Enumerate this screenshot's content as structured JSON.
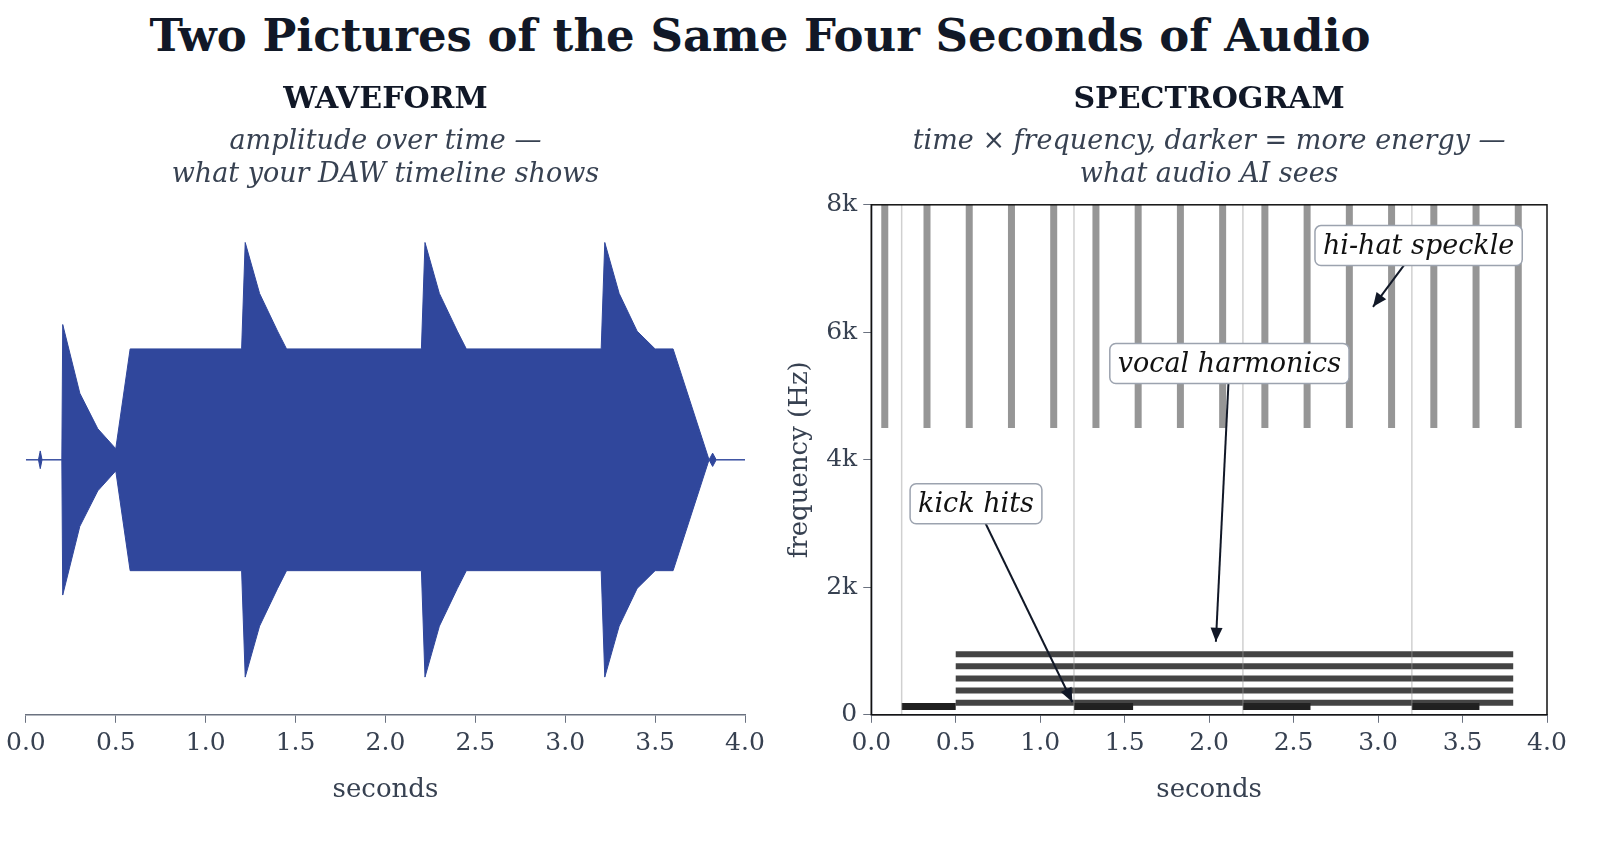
{
  "title": "Two Pictures of the Same Four Seconds of Audio",
  "chart_data": [
    {
      "type": "area",
      "title": "WAVEFORM",
      "subtitle": "amplitude over time — what your DAW timeline shows",
      "x_label": "seconds",
      "color": "#30479c",
      "x": [
        0,
        0.07,
        0.08,
        0.09,
        0.2,
        0.205,
        0.3,
        0.4,
        0.5,
        0.58,
        1.2,
        1.22,
        1.3,
        1.4,
        1.45,
        2.2,
        2.22,
        2.3,
        2.4,
        2.45,
        3.2,
        3.22,
        3.3,
        3.4,
        3.5,
        3.6,
        3.8,
        3.82,
        3.84,
        4.0
      ],
      "values": [
        0,
        0,
        0.04,
        0,
        0,
        0.61,
        0.3,
        0.14,
        0.05,
        0.5,
        0.5,
        0.98,
        0.75,
        0.58,
        0.5,
        0.5,
        0.98,
        0.75,
        0.58,
        0.5,
        0.5,
        0.98,
        0.75,
        0.58,
        0.5,
        0.5,
        0,
        0.03,
        0,
        0
      ],
      "xlim": [
        0,
        4
      ],
      "xticks": [
        {
          "value": 0,
          "label": "0.0"
        },
        {
          "value": 0.5,
          "label": "0.5"
        },
        {
          "value": 1,
          "label": "1.0"
        },
        {
          "value": 1.5,
          "label": "1.5"
        },
        {
          "value": 2,
          "label": "2.0"
        },
        {
          "value": 2.5,
          "label": "2.5"
        },
        {
          "value": 3,
          "label": "3.0"
        },
        {
          "value": 3.5,
          "label": "3.5"
        },
        {
          "value": 4,
          "label": "4.0"
        }
      ],
      "ylim": [
        -1.15,
        1.15
      ],
      "tick_labels": "x",
      "grid": false
    },
    {
      "type": "spectrogram",
      "title": "SPECTROGRAM",
      "subtitle": "time × frequency, darker = more energy — what audio AI sees",
      "x_label": "seconds",
      "y_label": "frequency (Hz)",
      "xlim": [
        0,
        4
      ],
      "xticks": [
        {
          "value": 0,
          "label": "0.0"
        },
        {
          "value": 0.5,
          "label": "0.5"
        },
        {
          "value": 1,
          "label": "1.0"
        },
        {
          "value": 1.5,
          "label": "1.5"
        },
        {
          "value": 2,
          "label": "2.0"
        },
        {
          "value": 2.5,
          "label": "2.5"
        },
        {
          "value": 3,
          "label": "3.0"
        },
        {
          "value": 3.5,
          "label": "3.5"
        },
        {
          "value": 4,
          "label": "4.0"
        }
      ],
      "ylim": [
        0,
        8000
      ],
      "yticks": [
        0,
        {
          "value": 2000,
          "label": "2k"
        },
        {
          "value": 4000,
          "label": "4k"
        },
        {
          "value": 6000,
          "label": "6k"
        },
        {
          "value": 8000,
          "label": "8k"
        }
      ],
      "grid": false,
      "harmonics": {
        "frequencies": [
          190,
          380,
          570,
          760,
          950
        ],
        "start": 0.5,
        "end": 3.8
      },
      "kicks": {
        "starts": [
          0.18,
          1.2,
          2.2,
          3.2
        ],
        "ends": [
          0.5,
          1.55,
          2.6,
          3.6
        ],
        "frequency": 130
      },
      "hihats": {
        "times": [
          0.08,
          0.33,
          0.58,
          0.83,
          1.08,
          1.33,
          1.58,
          1.83,
          2.08,
          2.33,
          2.58,
          2.83,
          3.08,
          3.33,
          3.58,
          3.83
        ],
        "low": 4500,
        "high": 8000
      },
      "annotations": [
        {
          "text": "kick hits",
          "xy": [
            1.19,
            200
          ],
          "xytext": [
            0.62,
            3310
          ]
        },
        {
          "text": "vocal harmonics",
          "xy": [
            2.04,
            1145
          ],
          "xytext": [
            2.12,
            5510
          ]
        },
        {
          "text": "hi-hat speckle",
          "xy": [
            2.97,
            6400
          ],
          "xytext": [
            3.24,
            7360
          ]
        }
      ]
    }
  ]
}
